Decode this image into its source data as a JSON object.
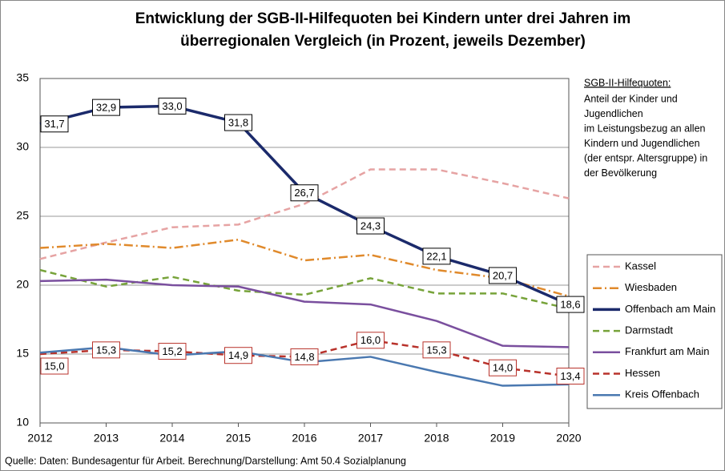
{
  "chart_data": {
    "type": "line",
    "title": [
      "Entwicklung der SGB-II-Hilfequoten bei Kindern unter drei Jahren im",
      "überregionalen Vergleich (in Prozent, jeweils Dezember)"
    ],
    "x": [
      2012,
      2013,
      2014,
      2015,
      2016,
      2017,
      2018,
      2019,
      2020
    ],
    "xlim": [
      2012,
      2020
    ],
    "xticks": [
      2012,
      2013,
      2014,
      2015,
      2016,
      2017,
      2018,
      2019,
      2020
    ],
    "ylim": [
      10,
      35
    ],
    "yticks": [
      10,
      15,
      20,
      25,
      30,
      35
    ],
    "grid": true,
    "legend": "right",
    "series": [
      {
        "name": "Kassel",
        "color": "#e6a3a3",
        "dash": "dashed",
        "values": [
          21.9,
          23.1,
          24.2,
          24.4,
          25.9,
          28.4,
          28.4,
          27.4,
          26.3
        ]
      },
      {
        "name": "Wiesbaden",
        "color": "#e08a2c",
        "dash": "dashdot",
        "values": [
          22.7,
          23.0,
          22.7,
          23.3,
          21.8,
          22.2,
          21.1,
          20.5,
          19.2
        ]
      },
      {
        "name": "Offenbach am Main",
        "color": "#1b2a6b",
        "dash": "solid",
        "values": [
          31.7,
          32.9,
          33.0,
          31.8,
          26.7,
          24.3,
          22.1,
          20.7,
          18.6
        ],
        "value_labels": [
          "31,7",
          "32,9",
          "33,0",
          "31,8",
          "26,7",
          "24,3",
          "22,1",
          "20,7",
          "18,6"
        ]
      },
      {
        "name": "Darmstadt",
        "color": "#77a33a",
        "dash": "dashed",
        "values": [
          21.1,
          19.9,
          20.6,
          19.6,
          19.3,
          20.5,
          19.4,
          19.4,
          18.3
        ]
      },
      {
        "name": "Frankfurt am Main",
        "color": "#7a4f9e",
        "dash": "solid",
        "values": [
          20.3,
          20.4,
          20.0,
          19.9,
          18.8,
          18.6,
          17.4,
          15.6,
          15.5
        ]
      },
      {
        "name": "Hessen",
        "color": "#b8322b",
        "dash": "dashed",
        "values": [
          15.0,
          15.3,
          15.2,
          14.9,
          14.8,
          16.0,
          15.3,
          14.0,
          13.4
        ],
        "value_labels": [
          "15,0",
          "15,3",
          "15,2",
          "14,9",
          "14,8",
          "16,0",
          "15,3",
          "14,0",
          "13,4"
        ]
      },
      {
        "name": "Kreis Offenbach",
        "color": "#4a78b0",
        "dash": "solid",
        "values": [
          15.1,
          15.5,
          14.9,
          15.2,
          14.4,
          14.8,
          13.7,
          12.7,
          12.8
        ]
      }
    ],
    "annotation": {
      "heading": "SGB-II-Hilfequoten:",
      "lines": [
        "Anteil der Kinder und",
        "Jugendlichen",
        "im Leistungsbezug an allen",
        "Kindern und Jugendlichen",
        "(der entspr. Altersgruppe) in",
        "der Bevölkerung"
      ]
    },
    "source": "Quelle: Daten: Bundesagentur für Arbeit. Berechnung/Darstellung: Amt 50.4 Sozialplanung"
  }
}
